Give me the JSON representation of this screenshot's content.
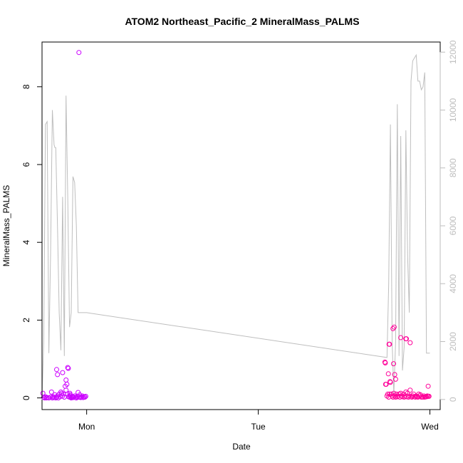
{
  "chart_data": {
    "type": "scatter",
    "title": "ATOM2 Northeast_Pacific_2 MineralMass_PALMS",
    "xlabel": "Date",
    "ylabel": "MineralMass_PALMS",
    "x_axis": {
      "unit": "day",
      "range": [
        -0.26,
        2.06
      ],
      "ticks": [
        {
          "value": 0,
          "label": "Mon"
        },
        {
          "value": 1,
          "label": "Tue"
        },
        {
          "value": 2,
          "label": "Wed"
        }
      ]
    },
    "y_axis_left": {
      "range": [
        -0.3,
        9.15
      ],
      "ticks": [
        {
          "value": 0,
          "label": "0"
        },
        {
          "value": 2,
          "label": "2"
        },
        {
          "value": 4,
          "label": "4"
        },
        {
          "value": 6,
          "label": "6"
        },
        {
          "value": 8,
          "label": "8"
        }
      ]
    },
    "y_axis_right": {
      "range": [
        -350,
        12350
      ],
      "ticks": [
        {
          "value": 0,
          "label": "0"
        },
        {
          "value": 2000,
          "label": "2000"
        },
        {
          "value": 4000,
          "label": "4000"
        },
        {
          "value": 6000,
          "label": "6000"
        },
        {
          "value": 8000,
          "label": "8000"
        },
        {
          "value": 10000,
          "label": "10000"
        },
        {
          "value": 12000,
          "label": "12000"
        }
      ]
    },
    "grid": false,
    "colors": {
      "points_a": "#cc00ff",
      "points_b": "#ff0099",
      "line": "#bebebe"
    },
    "series": [
      {
        "color": "#cc00ff",
        "marker": "open-circle",
        "x": [
          -0.255,
          -0.25,
          -0.245,
          -0.24,
          -0.235,
          -0.23,
          -0.22,
          -0.21,
          -0.205,
          -0.2,
          -0.195,
          -0.19,
          -0.185,
          -0.18,
          -0.175,
          -0.17,
          -0.165,
          -0.16,
          -0.155,
          -0.15,
          -0.145,
          -0.14,
          -0.135,
          -0.13,
          -0.125,
          -0.12,
          -0.115,
          -0.11,
          -0.105,
          -0.1,
          -0.095,
          -0.09,
          -0.085,
          -0.08,
          -0.075,
          -0.07,
          -0.065,
          -0.06,
          -0.055,
          -0.05,
          -0.045,
          -0.04,
          -0.035,
          -0.03,
          -0.025,
          -0.02,
          -0.015,
          -0.01,
          -0.005,
          -0.175,
          -0.17,
          -0.14,
          -0.12,
          -0.11,
          -0.107,
          -0.098,
          -0.095,
          -0.093,
          -0.08,
          -0.045
        ],
        "y": [
          0.12,
          0.02,
          0,
          0.03,
          0,
          0.01,
          0,
          0.02,
          0.15,
          0,
          0.03,
          0.01,
          0.08,
          0,
          0.02,
          0.05,
          0,
          0.1,
          0.03,
          0.15,
          0.12,
          0.05,
          0.1,
          0.02,
          0.3,
          0.2,
          0.35,
          0.1,
          0.03,
          0.02,
          0.08,
          0,
          0.03,
          0.01,
          0.02,
          0.05,
          0.01,
          0,
          0.03,
          0.14,
          0.02,
          0.08,
          0.01,
          0.02,
          0.05,
          0.01,
          0.03,
          0.02,
          0.04,
          0.73,
          0.6,
          0.65,
          0.46,
          0.78,
          0.76,
          0.12,
          0.05,
          0.02,
          0.03,
          8.88
        ]
      },
      {
        "color": "#ff0099",
        "marker": "open-circle",
        "x": [
          1.74,
          1.745,
          1.75,
          1.755,
          1.76,
          1.765,
          1.77,
          1.775,
          1.78,
          1.785,
          1.79,
          1.795,
          1.8,
          1.805,
          1.81,
          1.815,
          1.82,
          1.825,
          1.83,
          1.835,
          1.84,
          1.845,
          1.85,
          1.855,
          1.86,
          1.865,
          1.87,
          1.875,
          1.88,
          1.885,
          1.89,
          1.895,
          1.9,
          1.905,
          1.91,
          1.915,
          1.92,
          1.925,
          1.93,
          1.935,
          1.94,
          1.945,
          1.95,
          1.955,
          1.96,
          1.965,
          1.97,
          1.975,
          1.98,
          1.985,
          1.99,
          1.995,
          1.738,
          1.742,
          1.758,
          1.762,
          1.765,
          1.768,
          1.785,
          1.788,
          1.792,
          1.795,
          1.8,
          1.83,
          1.86,
          1.863,
          1.885,
          1.99
        ],
        "y": [
          0.9,
          0.35,
          0.05,
          0.1,
          0.02,
          0.1,
          0.4,
          0.1,
          0.05,
          0.02,
          0.12,
          0.05,
          0.02,
          0.1,
          0.03,
          0.05,
          0.1,
          0.02,
          0.12,
          0.05,
          0.03,
          0.1,
          0.02,
          0.05,
          0.15,
          0.03,
          0.12,
          0.02,
          0.05,
          0.2,
          0.03,
          0.02,
          0.05,
          0.1,
          0.03,
          0.02,
          0.05,
          0.03,
          0.02,
          0.1,
          0.05,
          0.08,
          0.02,
          0.03,
          0.02,
          0.05,
          0.02,
          0.03,
          0.03,
          0.05,
          0.04,
          0.04,
          0.92,
          0.35,
          0.62,
          1.38,
          1.38,
          0.42,
          1.78,
          0.88,
          1.82,
          0.6,
          0.48,
          1.55,
          1.52,
          1.52,
          1.42,
          0.3
        ]
      },
      {
        "color": "#bebebe",
        "type": "line",
        "axis": "right",
        "x": [
          -0.26,
          -0.25,
          -0.24,
          -0.23,
          -0.22,
          -0.21,
          -0.2,
          -0.19,
          -0.185,
          -0.18,
          -0.17,
          -0.16,
          -0.15,
          -0.14,
          -0.13,
          -0.12,
          -0.11,
          -0.1,
          -0.09,
          -0.08,
          -0.07,
          -0.06,
          -0.05,
          -0.04,
          -0.03,
          -0.02,
          -0.01,
          0,
          1.75,
          1.76,
          1.77,
          1.78,
          1.79,
          1.8,
          1.81,
          1.82,
          1.83,
          1.84,
          1.85,
          1.86,
          1.87,
          1.88,
          1.89,
          1.9,
          1.91,
          1.92,
          1.93,
          1.94,
          1.95,
          1.96,
          1.97,
          1.98,
          1.99,
          2.0
        ],
        "y": [
          0,
          2000,
          9500,
          9600,
          1600,
          5000,
          10000,
          8800,
          8700,
          8700,
          6000,
          3000,
          1700,
          7000,
          1500,
          10500,
          7000,
          2500,
          3000,
          7700,
          7500,
          6000,
          3000,
          3000,
          3000,
          3000,
          3000,
          3000,
          1450,
          4000,
          9500,
          2000,
          200,
          2000,
          10200,
          1500,
          9100,
          1000,
          1800,
          9300,
          5000,
          3000,
          11000,
          11700,
          11800,
          11900,
          11000,
          11000,
          10700,
          10800,
          11300,
          1600,
          1600,
          1600
        ]
      }
    ]
  }
}
